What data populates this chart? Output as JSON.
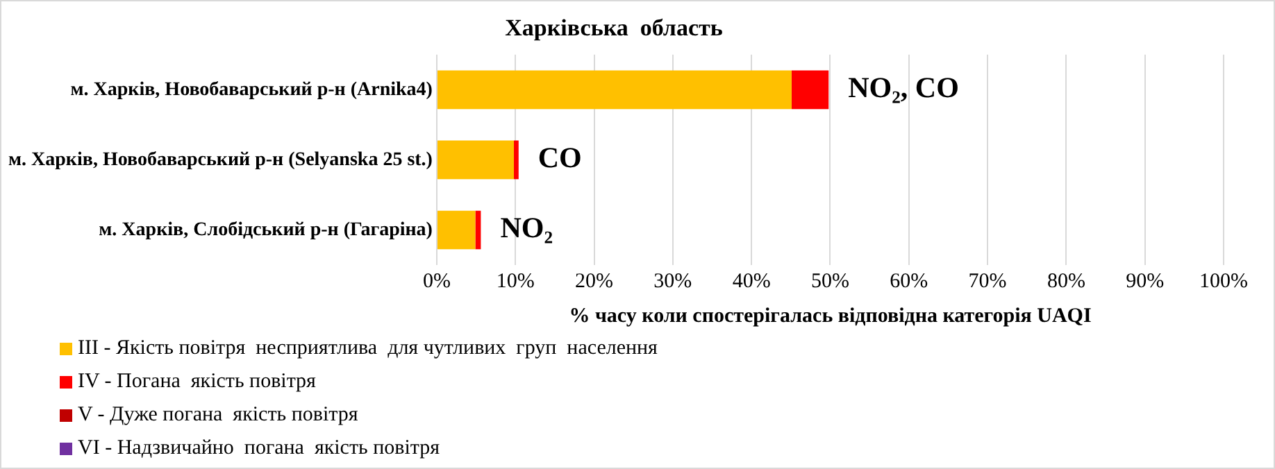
{
  "chart_data": {
    "type": "bar",
    "orientation": "horizontal",
    "stacked": true,
    "title": "Харківська  область",
    "xlabel": "% часу коли спостерігалась відповідна категорія UAQI",
    "categories": [
      "м. Харків, Новобаварський р-н (Arnika4)",
      "м. Харків, Новобаварський р-н (Selyanska 25 st.)",
      "м. Харків, Слобідський р-н (Гагаріна)"
    ],
    "series": [
      {
        "name": "III - Якість повітря  несприятлива  для чутливих  груп  населення",
        "color": "#ffc000",
        "values": [
          45.1,
          9.8,
          4.9
        ]
      },
      {
        "name": "IV - Погана  якість повітря",
        "color": "#ff0000",
        "values": [
          4.7,
          0.6,
          0.7
        ]
      },
      {
        "name": "V - Дуже погана  якість повітря",
        "color": "#c00000",
        "values": [
          0,
          0,
          0
        ]
      },
      {
        "name": "VI - Надзвичайно  погана  якість повітря",
        "color": "#7030a0",
        "values": [
          0,
          0,
          0
        ]
      }
    ],
    "xlim": [
      0,
      100
    ],
    "xticks": [
      {
        "value": 0,
        "label": "0%"
      },
      {
        "value": 10,
        "label": "10%"
      },
      {
        "value": 20,
        "label": "20%"
      },
      {
        "value": 30,
        "label": "30%"
      },
      {
        "value": 40,
        "label": "40%"
      },
      {
        "value": 50,
        "label": "50%"
      },
      {
        "value": 60,
        "label": "60%"
      },
      {
        "value": 70,
        "label": "70%"
      },
      {
        "value": 80,
        "label": "80%"
      },
      {
        "value": 90,
        "label": "90%"
      },
      {
        "value": 100,
        "label": "100%"
      }
    ],
    "grid": "x",
    "legend": "bottom left",
    "annotations": [
      {
        "text": "NO₂, CO",
        "x": 49.8,
        "y": "м. Харків, Новобаварський р-н (Arnika4)"
      },
      {
        "text": "CO",
        "x": 10.4,
        "y": "м. Харків, Новобаварський р-н (Selyanska 25 st.)"
      },
      {
        "text": "NO₂",
        "x": 5.6,
        "y": "м. Харків, Слобідський р-н (Гагаріна)"
      }
    ]
  }
}
